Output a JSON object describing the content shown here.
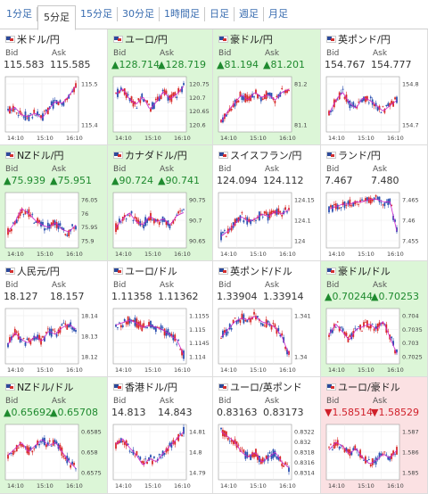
{
  "tabs": [
    "1分足",
    "5分足",
    "15分足",
    "30分足",
    "1時間足",
    "日足",
    "週足",
    "月足"
  ],
  "active_tab": 1,
  "labels": {
    "bid": "Bid",
    "ask": "Ask"
  },
  "colors": {
    "up": "#1e8a2e",
    "down": "#d0202a",
    "bull_candle": "#d82a2a",
    "bear_candle": "#2a4fb0",
    "ma_line": "#cc22cc",
    "highlight_up": "#dcf6d7",
    "highlight_down": "#fbe1e3"
  },
  "x_ticks": [
    "14:10",
    "15:10",
    "16:10"
  ],
  "pairs": [
    {
      "name": "米ドル/円",
      "bid": "115.583",
      "ask": "115.585",
      "dir": "none",
      "y_ticks": [
        "115.5",
        "115.4"
      ],
      "trend": [
        115.45,
        115.47,
        115.43,
        115.42,
        115.44,
        115.41,
        115.46,
        115.5,
        115.49,
        115.53,
        115.58
      ],
      "lo": 115.35,
      "hi": 115.62
    },
    {
      "name": "ユーロ/円",
      "bid": "▲128.714",
      "ask": "▲128.719",
      "dir": "up",
      "y_ticks": [
        "120.75",
        "120.7",
        "120.65",
        "120.6"
      ],
      "trend": [
        120.72,
        120.74,
        120.7,
        120.68,
        120.71,
        120.66,
        120.69,
        120.73,
        120.7,
        120.72,
        120.75
      ],
      "lo": 120.58,
      "hi": 120.78
    },
    {
      "name": "豪ドル/円",
      "bid": "▲81.194",
      "ask": "▲81.201",
      "dir": "up",
      "y_ticks": [
        "81.2",
        "81.1"
      ],
      "trend": [
        81.08,
        81.12,
        81.15,
        81.18,
        81.16,
        81.19,
        81.17,
        81.18,
        81.16,
        81.19,
        81.2
      ],
      "lo": 81.05,
      "hi": 81.24
    },
    {
      "name": "英ポンド/円",
      "bid": "154.767",
      "ask": "154.777",
      "dir": "none",
      "y_ticks": [
        "154.8",
        "154.7"
      ],
      "trend": [
        154.72,
        154.77,
        154.8,
        154.76,
        154.74,
        154.78,
        154.77,
        154.75,
        154.73,
        154.75,
        154.77
      ],
      "lo": 154.66,
      "hi": 154.85
    },
    {
      "name": "NZドル/円",
      "bid": "▲75.939",
      "ask": "▲75.951",
      "dir": "up",
      "y_ticks": [
        "76.05",
        "76",
        "75.95",
        "75.9"
      ],
      "trend": [
        75.92,
        75.96,
        76.02,
        76.0,
        75.97,
        75.95,
        75.94,
        75.96,
        75.93,
        75.92,
        75.95
      ],
      "lo": 75.86,
      "hi": 76.08
    },
    {
      "name": "カナダドル/円",
      "bid": "▲90.724",
      "ask": "▲90.741",
      "dir": "up",
      "y_ticks": [
        "90.75",
        "90.7",
        "90.65"
      ],
      "trend": [
        90.68,
        90.71,
        90.73,
        90.7,
        90.69,
        90.72,
        90.7,
        90.71,
        90.69,
        90.72,
        90.73
      ],
      "lo": 90.62,
      "hi": 90.79
    },
    {
      "name": "スイスフラン/円",
      "bid": "124.094",
      "ask": "124.112",
      "dir": "none",
      "y_ticks": [
        "124.15",
        "124.1",
        "124"
      ],
      "trend": [
        124.0,
        124.02,
        124.05,
        124.08,
        124.06,
        124.07,
        124.09,
        124.08,
        124.1,
        124.09,
        124.11
      ],
      "lo": 123.96,
      "hi": 124.17
    },
    {
      "name": "ランド/円",
      "bid": "7.467",
      "ask": "7.480",
      "dir": "none",
      "y_ticks": [
        "7.465",
        "7.46",
        "7.455"
      ],
      "trend": [
        7.467,
        7.468,
        7.469,
        7.469,
        7.47,
        7.47,
        7.471,
        7.471,
        7.47,
        7.47,
        7.458
      ],
      "lo": 7.452,
      "hi": 7.473
    },
    {
      "name": "人民元/円",
      "bid": "18.127",
      "ask": "18.157",
      "dir": "none",
      "y_ticks": [
        "18.14",
        "18.13",
        "18.12"
      ],
      "trend": [
        18.125,
        18.132,
        18.128,
        18.126,
        18.13,
        18.127,
        18.133,
        18.131,
        18.135,
        18.137,
        18.134
      ],
      "lo": 18.115,
      "hi": 18.145
    },
    {
      "name": "ユーロ/ドル",
      "bid": "1.11358",
      "ask": "1.11362",
      "dir": "none",
      "y_ticks": [
        "1.1155",
        "1.115",
        "1.1145",
        "1.114"
      ],
      "trend": [
        1.1151,
        1.1152,
        1.1153,
        1.1152,
        1.115,
        1.1151,
        1.115,
        1.1149,
        1.1147,
        1.1145,
        1.1139
      ],
      "lo": 1.1136,
      "hi": 1.1157
    },
    {
      "name": "英ポンド/ドル",
      "bid": "1.33904",
      "ask": "1.33914",
      "dir": "none",
      "y_ticks": [
        "1.341",
        "1.34"
      ],
      "trend": [
        1.34,
        1.3404,
        1.3408,
        1.341,
        1.3409,
        1.3411,
        1.3408,
        1.3407,
        1.3405,
        1.34,
        1.3391
      ],
      "lo": 1.3387,
      "hi": 1.3414
    },
    {
      "name": "豪ドル/ドル",
      "bid": "▲0.70244",
      "ask": "▲0.70253",
      "dir": "up",
      "y_ticks": [
        "0.704",
        "0.7035",
        "0.703",
        "0.7025"
      ],
      "trend": [
        0.7032,
        0.7036,
        0.7033,
        0.703,
        0.7034,
        0.7035,
        0.7036,
        0.7034,
        0.7037,
        0.7031,
        0.7025
      ],
      "lo": 0.7022,
      "hi": 0.7041
    },
    {
      "name": "NZドル/ドル",
      "bid": "▲0.65692",
      "ask": "▲0.65708",
      "dir": "up",
      "y_ticks": [
        "0.6585",
        "0.658",
        "0.6575"
      ],
      "trend": [
        0.6578,
        0.658,
        0.6582,
        0.6579,
        0.6581,
        0.6583,
        0.6581,
        0.6582,
        0.6579,
        0.6576,
        0.6574
      ],
      "lo": 0.6571,
      "hi": 0.6587
    },
    {
      "name": "香港ドル/円",
      "bid": "14.813",
      "ask": "14.843",
      "dir": "none",
      "y_ticks": [
        "14.81",
        "14.8",
        "14.79"
      ],
      "trend": [
        14.805,
        14.808,
        14.803,
        14.799,
        14.793,
        14.797,
        14.795,
        14.8,
        14.804,
        14.808,
        14.812
      ],
      "lo": 14.786,
      "hi": 14.815
    },
    {
      "name": "ユーロ/英ポンド",
      "bid": "0.83163",
      "ask": "0.83173",
      "dir": "none",
      "y_ticks": [
        "0.8322",
        "0.832",
        "0.8318",
        "0.8316",
        "0.8314"
      ],
      "trend": [
        0.8322,
        0.8321,
        0.832,
        0.8318,
        0.8317,
        0.8318,
        0.8316,
        0.8317,
        0.8318,
        0.8316,
        0.8315
      ],
      "lo": 0.8313,
      "hi": 0.8323
    },
    {
      "name": "ユーロ/豪ドル",
      "bid": "▼1.58514",
      "ask": "▼1.58529",
      "dir": "down",
      "y_ticks": [
        "1.587",
        "1.586",
        "1.585"
      ],
      "trend": [
        1.586,
        1.5864,
        1.5862,
        1.5858,
        1.5861,
        1.5856,
        1.5853,
        1.5855,
        1.5858,
        1.5856,
        1.586
      ],
      "lo": 1.5846,
      "hi": 1.5872
    }
  ]
}
